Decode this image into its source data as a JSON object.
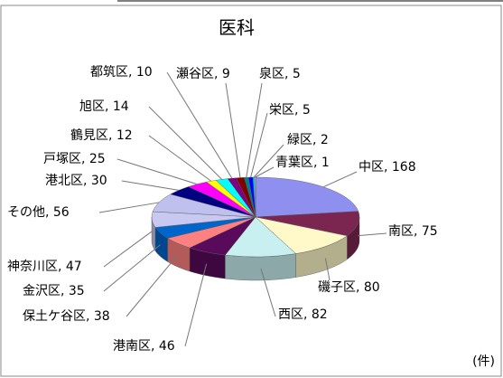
{
  "chart_data": {
    "type": "pie",
    "title": "医科",
    "unit_label": "(件)",
    "categories": [
      "中区",
      "南区",
      "磯子区",
      "西区",
      "港南区",
      "保土ケ谷区",
      "金沢区",
      "神奈川区",
      "その他",
      "港北区",
      "戸塚区",
      "鶴見区",
      "旭区",
      "都筑区",
      "瀬谷区",
      "泉区",
      "栄区",
      "緑区",
      "青葉区"
    ],
    "values": [
      168,
      75,
      80,
      82,
      46,
      38,
      35,
      47,
      56,
      30,
      25,
      12,
      14,
      10,
      9,
      5,
      5,
      2,
      1
    ],
    "value_labels": [
      "中区, 168",
      "南区, 75",
      "磯子区, 80",
      "西区, 82",
      "港南区, 46",
      "保土ケ谷区, 38",
      "金沢区, 35",
      "神奈川区, 47",
      "その他, 56",
      "港北区, 30",
      "戸塚区, 25",
      "鶴見区, 12",
      "旭区, 14",
      "都筑区, 10",
      "瀬谷区, 9",
      "泉区, 5",
      "栄区, 5",
      "緑区, 2",
      "青葉区, 1"
    ],
    "colors": [
      "#8f8fef",
      "#7b2650",
      "#fff8c8",
      "#c8f0f0",
      "#5a0a5a",
      "#ff8080",
      "#0066cc",
      "#c8c8f0",
      "#c0c0ee",
      "#000080",
      "#ff00ff",
      "#ffff00",
      "#00ffff",
      "#800080",
      "#800000",
      "#008080",
      "#0000ff",
      "#00ccff",
      "#ccffff"
    ]
  }
}
